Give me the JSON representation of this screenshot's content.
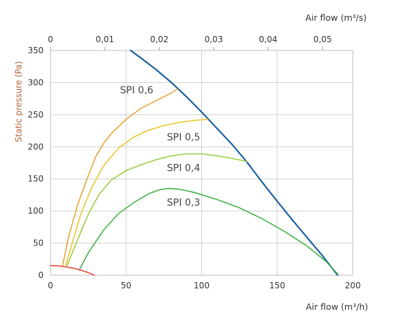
{
  "chart_data": {
    "type": "line",
    "xlabel_bottom": "Air flow (m³/h)",
    "xlabel_top": "Air flow (m³/s)",
    "ylabel": "Static pressure (Pa)",
    "xlim": [
      0,
      200
    ],
    "ylim": [
      0,
      350
    ],
    "x_ticks": [
      "0",
      "50",
      "100",
      "150",
      "200"
    ],
    "x_tick_values": [
      0,
      50,
      100,
      150,
      200
    ],
    "y_ticks": [
      "0",
      "50",
      "100",
      "150",
      "200",
      "250",
      "300",
      "350"
    ],
    "y_tick_values": [
      0,
      50,
      100,
      150,
      200,
      250,
      300,
      350
    ],
    "top_x_ticks": [
      "0",
      "0,01",
      "0,02",
      "0,03",
      "0,04",
      "0,05"
    ],
    "top_x_tick_values_m3h": [
      0,
      36,
      72,
      108,
      144,
      180
    ],
    "grid": true,
    "series": [
      {
        "color": "#1a5fa0",
        "x": [
          53,
          60,
          70,
          80,
          90,
          100,
          110,
          120,
          130,
          140,
          150,
          160,
          170,
          180,
          190
        ],
        "y": [
          350,
          338,
          320,
          300,
          278,
          254,
          229,
          204,
          176,
          145,
          115,
          86,
          58,
          30,
          0
        ]
      },
      {
        "name": "SPI 0,6",
        "color": "#e8a33a",
        "x": [
          8,
          12,
          18,
          25,
          30,
          35,
          40,
          50,
          60,
          70,
          80,
          84
        ],
        "y": [
          15,
          60,
          110,
          155,
          185,
          205,
          220,
          243,
          260,
          272,
          284,
          290
        ]
      },
      {
        "name": "SPI 0,5",
        "color": "#e8c62c",
        "x": [
          10,
          15,
          20,
          27,
          35,
          45,
          55,
          65,
          75,
          85,
          95,
          104
        ],
        "y": [
          15,
          55,
          95,
          135,
          170,
          198,
          215,
          226,
          233,
          238,
          241,
          243
        ]
      },
      {
        "name": "SPI 0,4",
        "color": "#99cc44",
        "x": [
          11,
          17,
          25,
          32,
          40,
          50,
          60,
          70,
          80,
          90,
          100,
          110,
          120,
          130
        ],
        "y": [
          15,
          50,
          95,
          125,
          148,
          163,
          172,
          180,
          186,
          189,
          189,
          186,
          182,
          177
        ]
      },
      {
        "name": "SPI 0,3",
        "color": "#44b144",
        "x": [
          19,
          25,
          35,
          45,
          55,
          65,
          72,
          78,
          85,
          95,
          110,
          125,
          140,
          155,
          170,
          182,
          190
        ],
        "y": [
          8,
          35,
          70,
          96,
          113,
          127,
          133,
          135,
          134,
          129,
          118,
          105,
          88,
          68,
          45,
          22,
          2
        ]
      },
      {
        "color": "#e8453c",
        "x": [
          0,
          5,
          10,
          15,
          20,
          25,
          29
        ],
        "y": [
          15,
          14.5,
          13,
          11,
          8,
          4,
          0
        ]
      }
    ],
    "annotations": [
      {
        "text": "SPI 0,6",
        "x": 46,
        "y": 283
      },
      {
        "text": "SPI 0,5",
        "x": 77,
        "y": 210
      },
      {
        "text": "SPI 0,4",
        "x": 77,
        "y": 162
      },
      {
        "text": "SPI 0,3",
        "x": 77,
        "y": 108
      }
    ]
  }
}
